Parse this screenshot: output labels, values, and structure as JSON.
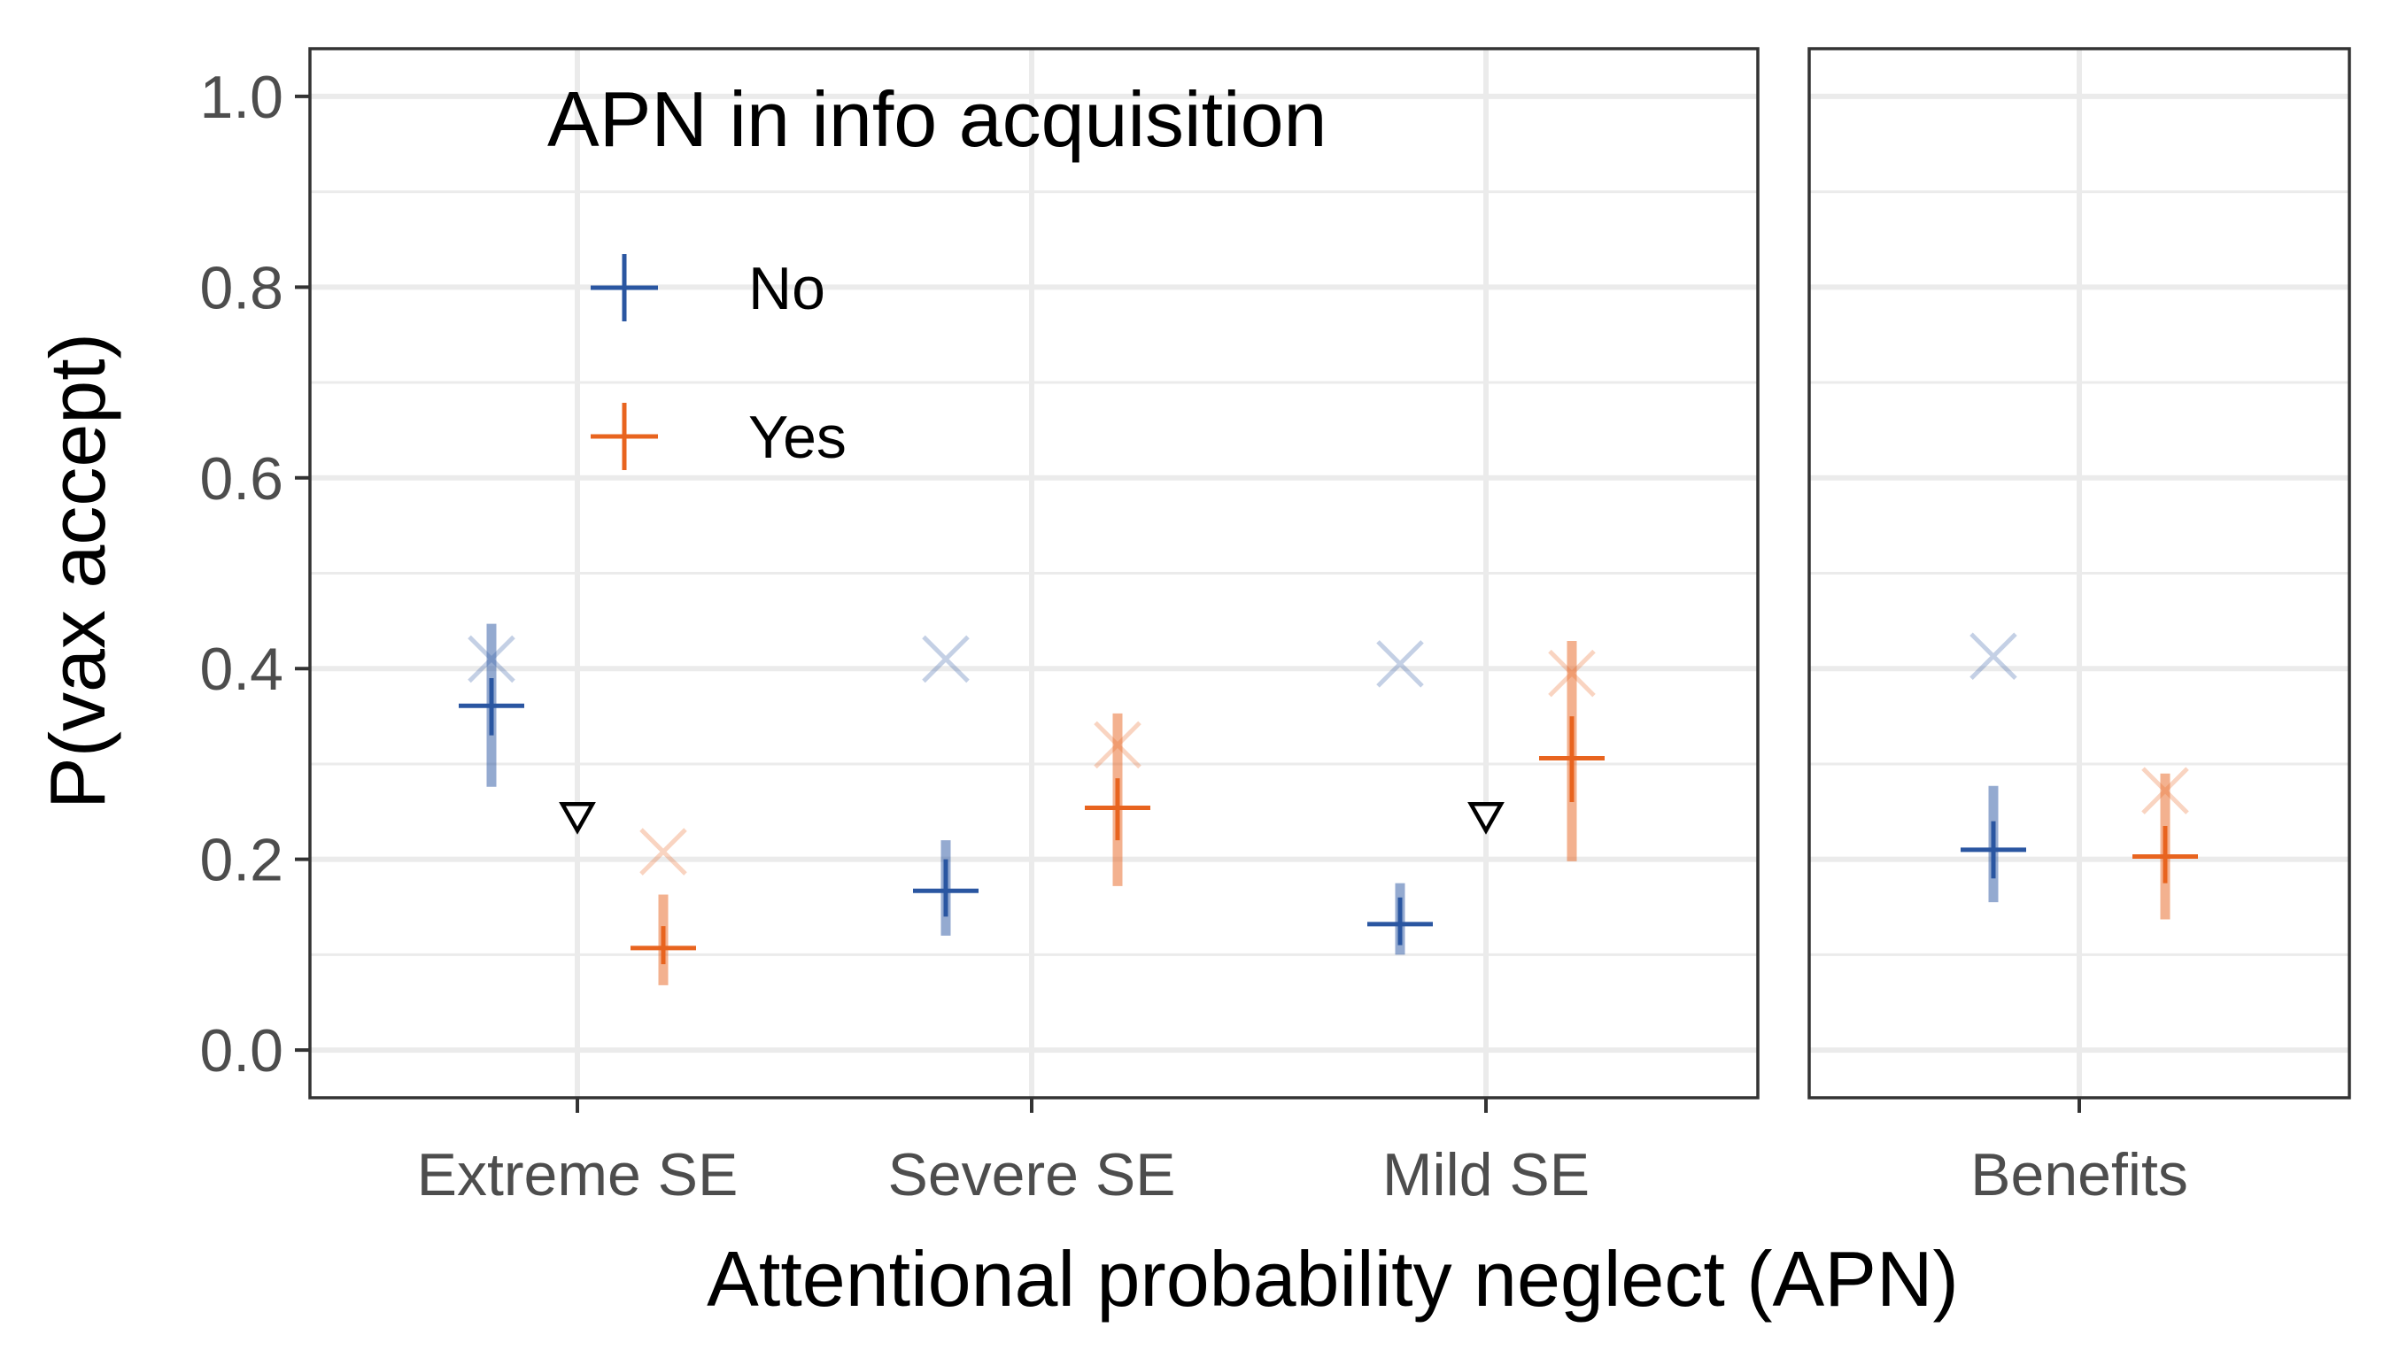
{
  "chart_data": {
    "type": "scatter",
    "xlabel": "Attentional probability neglect (APN)",
    "ylabel": "P(vax accept)",
    "ylim": [
      -0.05,
      1.05
    ],
    "yticks": [
      0.0,
      0.2,
      0.4,
      0.6,
      0.8,
      1.0
    ],
    "ytick_labels": [
      "0.0",
      "0.2",
      "0.4",
      "0.6",
      "0.8",
      "1.0"
    ],
    "grid": true,
    "legend": {
      "title": "APN in info acquisition",
      "placement": "top-left inside",
      "entries": [
        {
          "label": "No",
          "color": "#2a56a1"
        },
        {
          "label": "Yes",
          "color": "#e8641f"
        }
      ]
    },
    "panels": [
      {
        "categories": [
          "Extreme SE",
          "Severe SE",
          "Mild SE"
        ],
        "series": [
          {
            "name": "No",
            "color": "#2a56a1",
            "estimate": [
              0.361,
              0.167,
              0.132
            ],
            "inner_interval": [
              [
                0.33,
                0.39
              ],
              [
                0.14,
                0.2
              ],
              [
                0.11,
                0.16
              ]
            ],
            "outer_interval": [
              [
                0.276,
                0.447
              ],
              [
                0.12,
                0.22
              ],
              [
                0.1,
                0.175
              ]
            ],
            "reference_x": [
              0.41,
              0.41,
              0.405
            ]
          },
          {
            "name": "Yes",
            "color": "#e8641f",
            "estimate": [
              0.107,
              0.254,
              0.306
            ],
            "inner_interval": [
              [
                0.09,
                0.13
              ],
              [
                0.22,
                0.285
              ],
              [
                0.26,
                0.35
              ]
            ],
            "outer_interval": [
              [
                0.068,
                0.163
              ],
              [
                0.172,
                0.353
              ],
              [
                0.198,
                0.429
              ]
            ],
            "reference_x": [
              0.208,
              0.32,
              0.395
            ]
          }
        ],
        "triangle_markers": [
          {
            "category": "Extreme SE",
            "y": 0.245
          },
          {
            "category": "Mild SE",
            "y": 0.245
          }
        ]
      },
      {
        "categories": [
          "Benefits"
        ],
        "series": [
          {
            "name": "No",
            "color": "#2a56a1",
            "estimate": [
              0.21
            ],
            "inner_interval": [
              [
                0.18,
                0.24
              ]
            ],
            "outer_interval": [
              [
                0.155,
                0.277
              ]
            ],
            "reference_x": [
              0.413
            ]
          },
          {
            "name": "Yes",
            "color": "#e8641f",
            "estimate": [
              0.203
            ],
            "inner_interval": [
              [
                0.175,
                0.235
              ]
            ],
            "outer_interval": [
              [
                0.137,
                0.29
              ]
            ],
            "reference_x": [
              0.272
            ]
          }
        ],
        "triangle_markers": []
      }
    ]
  }
}
